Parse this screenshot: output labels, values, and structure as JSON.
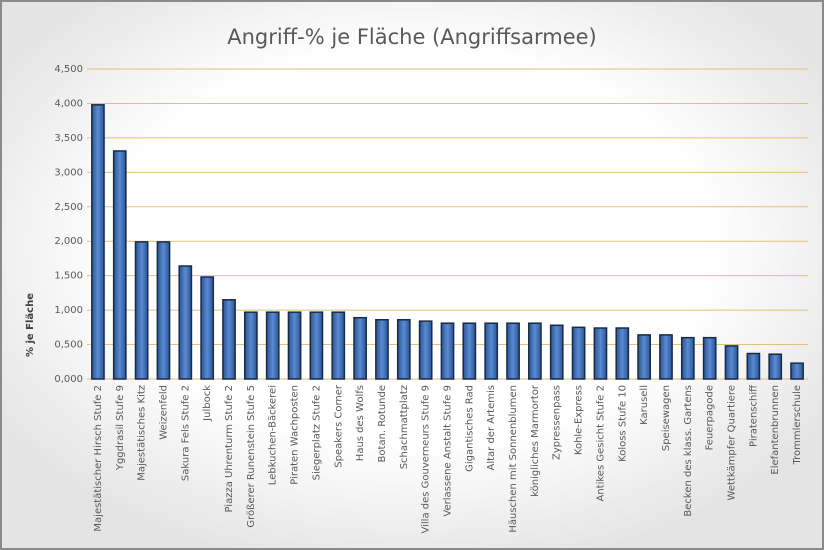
{
  "chart_data": {
    "type": "bar",
    "title": "Angriff-% je Fläche (Angriffsarmee)",
    "y_label": "% je Fläche",
    "categories": [
      "Majestätischer Hirsch Stufe 2",
      "Yggdrasil Stufe 9",
      "Majestätisches Kitz",
      "Weizenfeld",
      "Sakura Fels Stufe 2",
      "Julbock",
      "Piazza Uhrenturm Stufe 2",
      "Größerer Runenstein Stufe 5",
      "Lebkuchen-Bäckerei",
      "Piraten Wachposten",
      "Siegerplatz Stufe 2",
      "Speakers Corner",
      "Haus des Wolfs",
      "Botan. Rotunde",
      "Schachmattplatz",
      "Villa des Gouverneurs Stufe 9",
      "Verlassene Anstalt Stufe 9",
      "Gigantisches Rad",
      "Altar der Artemis",
      "Häuschen mit Sonnenblumen",
      "königliches Marmortor",
      "Zypressenpass",
      "Kohle-Express",
      "Antikes Gesicht Stufe 2",
      "Koloss Stufe 10",
      "Karusell",
      "Speisewagen",
      "Becken des klass. Gartens",
      "Feuerpagode",
      "Wettkämpfer Quartiere",
      "Piratenschiff",
      "Elefantenbrunnen",
      "Trommlerschule"
    ],
    "values": [
      3.98,
      3.31,
      1.99,
      1.99,
      1.64,
      1.48,
      1.15,
      0.97,
      0.97,
      0.97,
      0.97,
      0.97,
      0.89,
      0.86,
      0.86,
      0.84,
      0.81,
      0.81,
      0.81,
      0.81,
      0.81,
      0.78,
      0.75,
      0.74,
      0.74,
      0.64,
      0.64,
      0.6,
      0.6,
      0.48,
      0.37,
      0.36,
      0.23
    ],
    "color": "#3a6db5",
    "ylim": [
      0,
      4.5
    ],
    "yticks": [
      {
        "value": 0,
        "label": "0,000"
      },
      {
        "value": 0.5,
        "label": "0,500"
      },
      {
        "value": 1,
        "label": "1,000"
      },
      {
        "value": 1.5,
        "label": "1,500"
      },
      {
        "value": 2,
        "label": "2,000"
      },
      {
        "value": 2.5,
        "label": "2,500"
      },
      {
        "value": 3,
        "label": "3,000"
      },
      {
        "value": 3.5,
        "label": "3,500"
      },
      {
        "value": 4,
        "label": "4,000"
      },
      {
        "value": 4.5,
        "label": "4,500"
      }
    ],
    "grid": true
  }
}
